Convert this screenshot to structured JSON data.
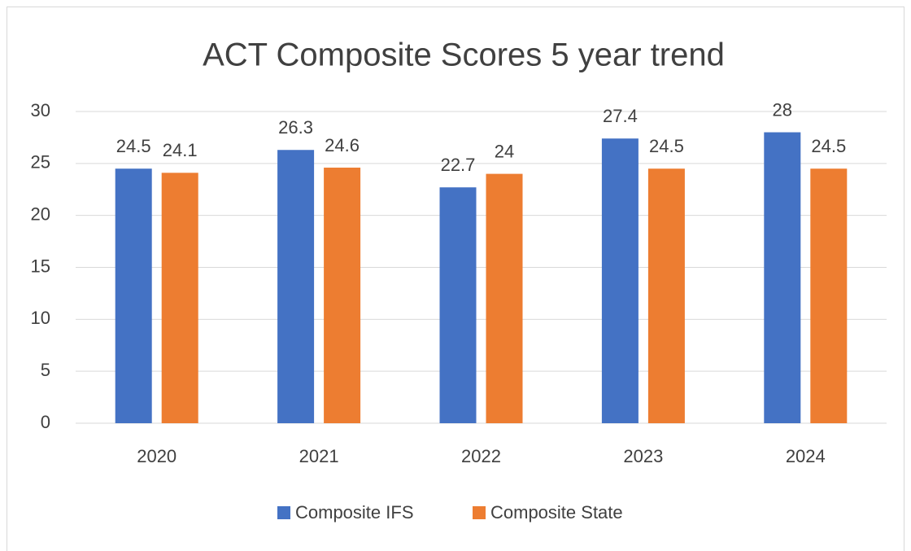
{
  "chart_data": {
    "type": "bar",
    "title": "ACT Composite Scores 5 year trend",
    "categories": [
      "2020",
      "2021",
      "2022",
      "2023",
      "2024"
    ],
    "series": [
      {
        "name": "Composite IFS",
        "color": "#4472c4",
        "values": [
          24.5,
          26.3,
          22.7,
          27.4,
          28
        ]
      },
      {
        "name": "Composite State",
        "color": "#ed7d31",
        "values": [
          24.1,
          24.6,
          24,
          24.5,
          24.5
        ]
      }
    ],
    "ylim": [
      0,
      30
    ],
    "yticks": [
      0,
      5,
      10,
      15,
      20,
      25,
      30
    ],
    "grid": true,
    "legend": "bottom"
  }
}
